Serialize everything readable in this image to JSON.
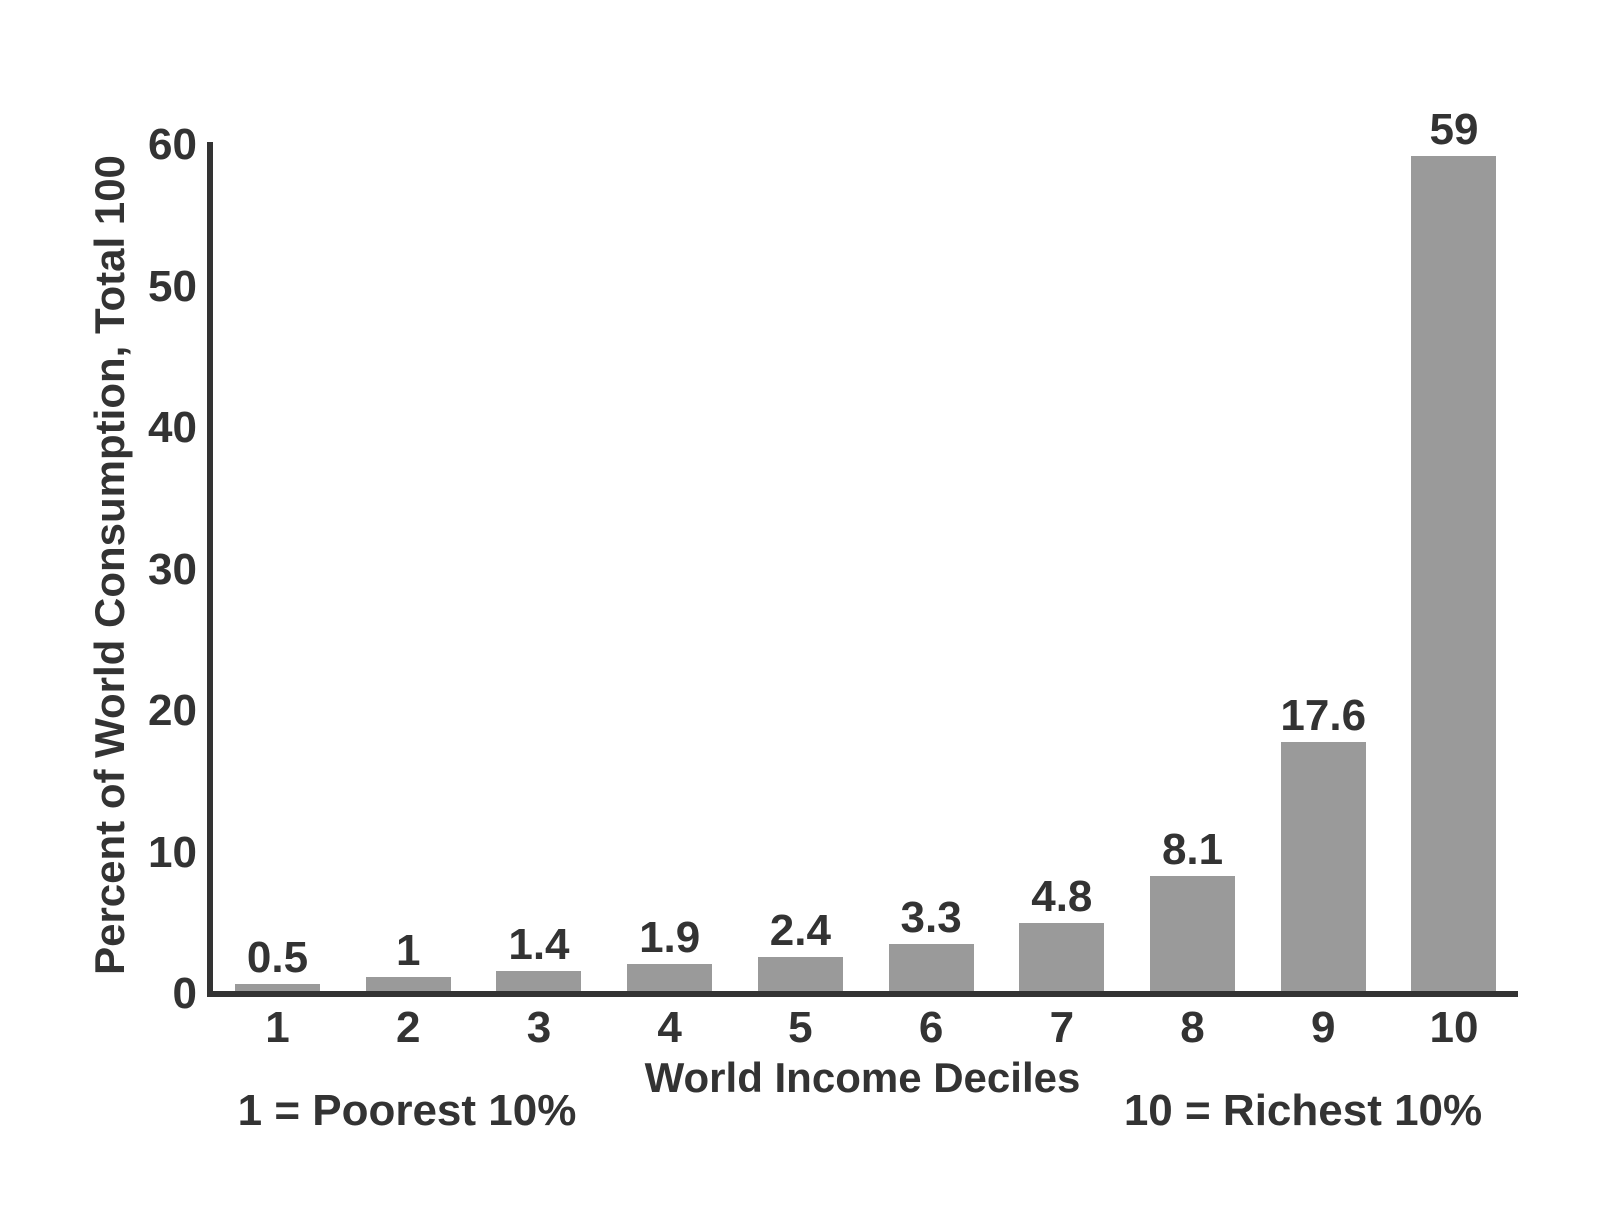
{
  "chart_data": {
    "type": "bar",
    "categories": [
      "1",
      "2",
      "3",
      "4",
      "5",
      "6",
      "7",
      "8",
      "9",
      "10"
    ],
    "values": [
      0.5,
      1,
      1.4,
      1.9,
      2.4,
      3.3,
      4.8,
      8.1,
      17.6,
      59
    ],
    "value_labels": [
      "0.5",
      "1",
      "1.4",
      "1.9",
      "2.4",
      "3.3",
      "4.8",
      "8.1",
      "17.6",
      "59"
    ],
    "title": "",
    "xlabel": "World Income Deciles",
    "ylabel": "Percent of World Consumption, Total 100",
    "ylim": [
      0,
      60
    ],
    "yticks": [
      0,
      10,
      20,
      30,
      40,
      50,
      60
    ],
    "grid": false,
    "legend_position": "none",
    "annotations": {
      "left": "1 = Poorest 10%",
      "right": "10 = Richest 10%"
    },
    "colors": {
      "bar": "#9a9a9a",
      "axis": "#333333",
      "text": "#333333",
      "background": "#ffffff"
    }
  }
}
